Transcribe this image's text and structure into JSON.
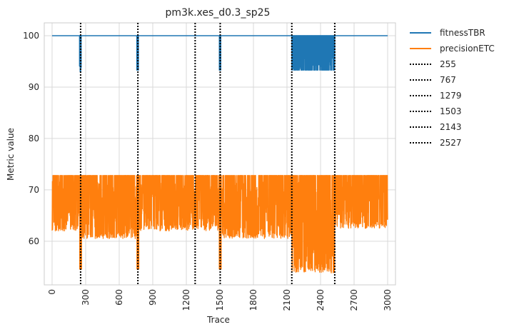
{
  "chart_data": {
    "type": "line",
    "title": "pm3k.xes_d0.3_sp25",
    "xlabel": "Trace",
    "ylabel": "Metric value",
    "xlim": [
      -70,
      3070
    ],
    "ylim": [
      51.5,
      102.5
    ],
    "x_ticks": [
      0,
      300,
      600,
      900,
      1200,
      1500,
      1800,
      2100,
      2400,
      2700,
      3000
    ],
    "x_tick_labels": [
      "0",
      "300",
      "600",
      "900",
      "1200",
      "1500",
      "1800",
      "2100",
      "2400",
      "2700",
      "3000"
    ],
    "y_ticks": [
      60,
      70,
      80,
      90,
      100
    ],
    "y_tick_labels": [
      "60",
      "70",
      "80",
      "90",
      "100"
    ],
    "grid": true,
    "legend_position": "outside-top-right",
    "colors": {
      "fitness": "#1f77b4",
      "precision": "#ff7f0e",
      "drift": "#000000"
    },
    "series": [
      {
        "name": "fitnessTBR",
        "baseline": 100,
        "dips": [
          {
            "x_start": 245,
            "x_end": 260,
            "min": 93
          },
          {
            "x_start": 757,
            "x_end": 772,
            "min": 93.3
          },
          {
            "x_start": 1495,
            "x_end": 1508,
            "min": 93.3
          },
          {
            "x_start": 2143,
            "x_end": 2527,
            "min": 93.3
          }
        ]
      },
      {
        "name": "precisionETC",
        "range_min": 60.5,
        "range_max": 72.8,
        "segments": [
          {
            "x_start": 0,
            "x_end": 255,
            "low": 62,
            "high": 72.8
          },
          {
            "x_start": 255,
            "x_end": 767,
            "low": 60.5,
            "high": 72.8
          },
          {
            "x_start": 767,
            "x_end": 1279,
            "low": 62,
            "high": 72.8
          },
          {
            "x_start": 1279,
            "x_end": 1503,
            "low": 62,
            "high": 72.8
          },
          {
            "x_start": 1503,
            "x_end": 2143,
            "low": 60.5,
            "high": 72.8
          },
          {
            "x_start": 2143,
            "x_end": 2527,
            "low": 53.8,
            "high": 72.8
          },
          {
            "x_start": 2527,
            "x_end": 3000,
            "low": 62.5,
            "high": 72.8
          }
        ],
        "spikes": [
          {
            "x": 255,
            "min": 54.5
          },
          {
            "x": 767,
            "min": 54.5
          },
          {
            "x": 1503,
            "min": 54.5
          }
        ]
      }
    ],
    "drift_lines": [
      {
        "name": "255",
        "x": 255
      },
      {
        "name": "767",
        "x": 767
      },
      {
        "name": "1279",
        "x": 1279
      },
      {
        "name": "1503",
        "x": 1503
      },
      {
        "name": "2143",
        "x": 2143
      },
      {
        "name": "2527",
        "x": 2527
      }
    ]
  }
}
